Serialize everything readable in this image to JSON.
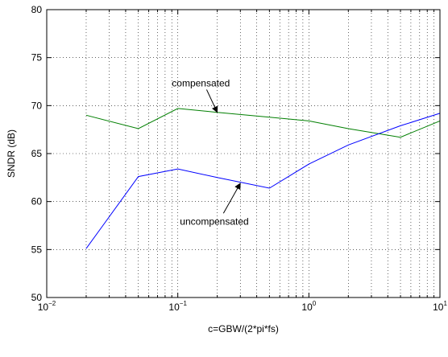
{
  "chart_data": {
    "type": "line",
    "title": "",
    "xlabel": "c=GBW/(2*pi*fs)",
    "ylabel": "SNDR (dB)",
    "x_scale": "log",
    "xlim": [
      0.01,
      10
    ],
    "ylim": [
      50,
      80
    ],
    "grid": true,
    "x_ticks": [
      {
        "base": "10",
        "exp": "−2",
        "value": 0.01
      },
      {
        "base": "10",
        "exp": "−1",
        "value": 0.1
      },
      {
        "base": "10",
        "exp": "0",
        "value": 1
      },
      {
        "base": "10",
        "exp": "1",
        "value": 10
      }
    ],
    "y_ticks": [
      "50",
      "55",
      "60",
      "65",
      "70",
      "75",
      "80"
    ],
    "series": [
      {
        "name": "compensated",
        "color": "#007f00",
        "x": [
          0.02,
          0.05,
          0.1,
          0.2,
          0.5,
          1,
          2,
          5,
          10
        ],
        "y": [
          69.0,
          67.6,
          69.7,
          69.3,
          68.8,
          68.4,
          67.6,
          66.7,
          68.4
        ]
      },
      {
        "name": "uncompensated",
        "color": "#0000ff",
        "x": [
          0.02,
          0.05,
          0.1,
          0.2,
          0.5,
          1,
          2,
          5,
          10
        ],
        "y": [
          55.1,
          62.6,
          63.4,
          62.5,
          61.4,
          63.9,
          65.9,
          67.9,
          69.2
        ]
      }
    ],
    "annotations": [
      {
        "text": "compensated",
        "label_x": 0.15,
        "label_y": 72.0,
        "arrow_to_x": 0.2,
        "arrow_to_y": 69.3
      },
      {
        "text": "uncompensated",
        "label_x": 0.19,
        "label_y": 57.6,
        "arrow_to_x": 0.3,
        "arrow_to_y": 61.9
      }
    ]
  }
}
